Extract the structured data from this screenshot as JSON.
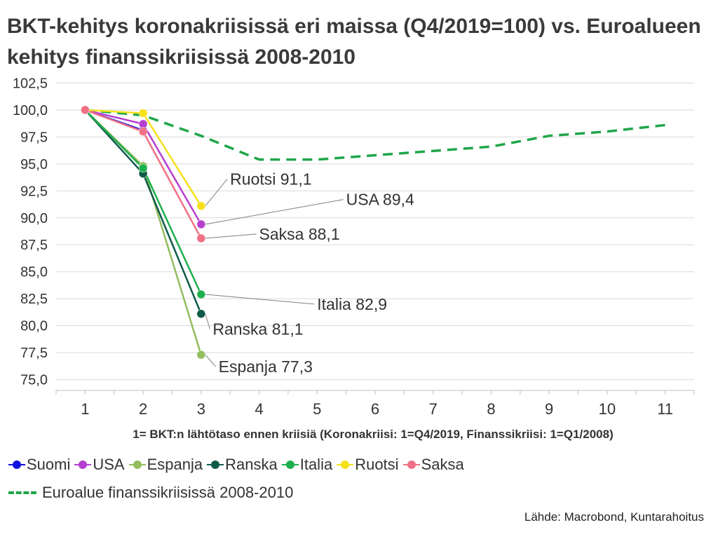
{
  "title": "BKT-kehitys koronakriisissä eri maissa (Q4/2019=100) vs. Euroalueen kehitys finanssikriisissä 2008-2010",
  "source": "Lähde: Macrobond, Kuntarahoitus",
  "chart_data": {
    "type": "line",
    "title": "BKT-kehitys koronakriisissä eri maissa (Q4/2019=100) vs. Euroalueen kehitys finanssikriisissä 2008-2010",
    "xlabel": "1= BKT:n lähtötaso ennen kriisiä (Koronakriisi: 1=Q4/2019, Finanssikriisi: 1=Q1/2008)",
    "ylabel": "",
    "x_ticks": [
      1,
      2,
      3,
      4,
      5,
      6,
      7,
      8,
      9,
      10,
      11
    ],
    "y_ticks": [
      "75,0",
      "77,5",
      "80,0",
      "82,5",
      "85,0",
      "87,5",
      "90,0",
      "92,5",
      "95,0",
      "97,5",
      "100,0",
      "102,5"
    ],
    "ylim": [
      74,
      103.5
    ],
    "xlim": [
      0.5,
      11.5
    ],
    "grid": "horizontal",
    "legend_position": "bottom",
    "series": [
      {
        "name": "Suomi",
        "color": "#1010e0",
        "style": "solid",
        "marker": true,
        "x": [
          1,
          2
        ],
        "y": [
          100.0,
          98.1
        ]
      },
      {
        "name": "USA",
        "color": "#b63fd0",
        "style": "solid",
        "marker": true,
        "x": [
          1,
          2,
          3
        ],
        "y": [
          100.0,
          98.7,
          89.4
        ]
      },
      {
        "name": "Espanja",
        "color": "#94bd5e",
        "style": "solid",
        "marker": true,
        "x": [
          1,
          2,
          3
        ],
        "y": [
          100.0,
          94.8,
          77.3
        ]
      },
      {
        "name": "Ranska",
        "color": "#0f5a48",
        "style": "solid",
        "marker": true,
        "x": [
          1,
          2,
          3
        ],
        "y": [
          100.0,
          94.1,
          81.1
        ]
      },
      {
        "name": "Italia",
        "color": "#1eb04e",
        "style": "solid",
        "marker": true,
        "x": [
          1,
          2,
          3
        ],
        "y": [
          100.0,
          94.6,
          82.9
        ]
      },
      {
        "name": "Ruotsi",
        "color": "#f5e01a",
        "style": "solid",
        "marker": true,
        "x": [
          1,
          2,
          3
        ],
        "y": [
          100.0,
          99.7,
          91.1
        ]
      },
      {
        "name": "Saksa",
        "color": "#f07085",
        "style": "solid",
        "marker": true,
        "x": [
          1,
          2,
          3
        ],
        "y": [
          100.0,
          98.0,
          88.1
        ]
      },
      {
        "name": "Euroalue finanssikriisissä 2008-2010",
        "color": "#1fa64a",
        "style": "dashed",
        "marker": false,
        "x": [
          1,
          2,
          3,
          4,
          5,
          6,
          7,
          8,
          9,
          10,
          11
        ],
        "y": [
          100.0,
          99.5,
          97.6,
          95.4,
          95.4,
          95.8,
          96.2,
          96.6,
          97.6,
          98.0,
          98.6
        ]
      }
    ],
    "annotations": [
      {
        "text": "Ruotsi 91,1",
        "series": "Ruotsi",
        "x": 3,
        "y": 91.1,
        "label_x": 3.5,
        "label_y": 93.6
      },
      {
        "text": "USA 89,4",
        "series": "USA",
        "x": 3,
        "y": 89.4,
        "label_x": 5.5,
        "label_y": 91.7
      },
      {
        "text": "Saksa 88,1",
        "series": "Saksa",
        "x": 3,
        "y": 88.1,
        "label_x": 4.0,
        "label_y": 88.5
      },
      {
        "text": "Italia 82,9",
        "series": "Italia",
        "x": 3,
        "y": 82.9,
        "label_x": 5.0,
        "label_y": 82.0
      },
      {
        "text": "Ranska 81,1",
        "series": "Ranska",
        "x": 3,
        "y": 81.1,
        "label_x": 3.2,
        "label_y": 79.7
      },
      {
        "text": "Espanja 77,3",
        "series": "Espanja",
        "x": 3,
        "y": 77.3,
        "label_x": 3.3,
        "label_y": 76.2
      }
    ]
  }
}
